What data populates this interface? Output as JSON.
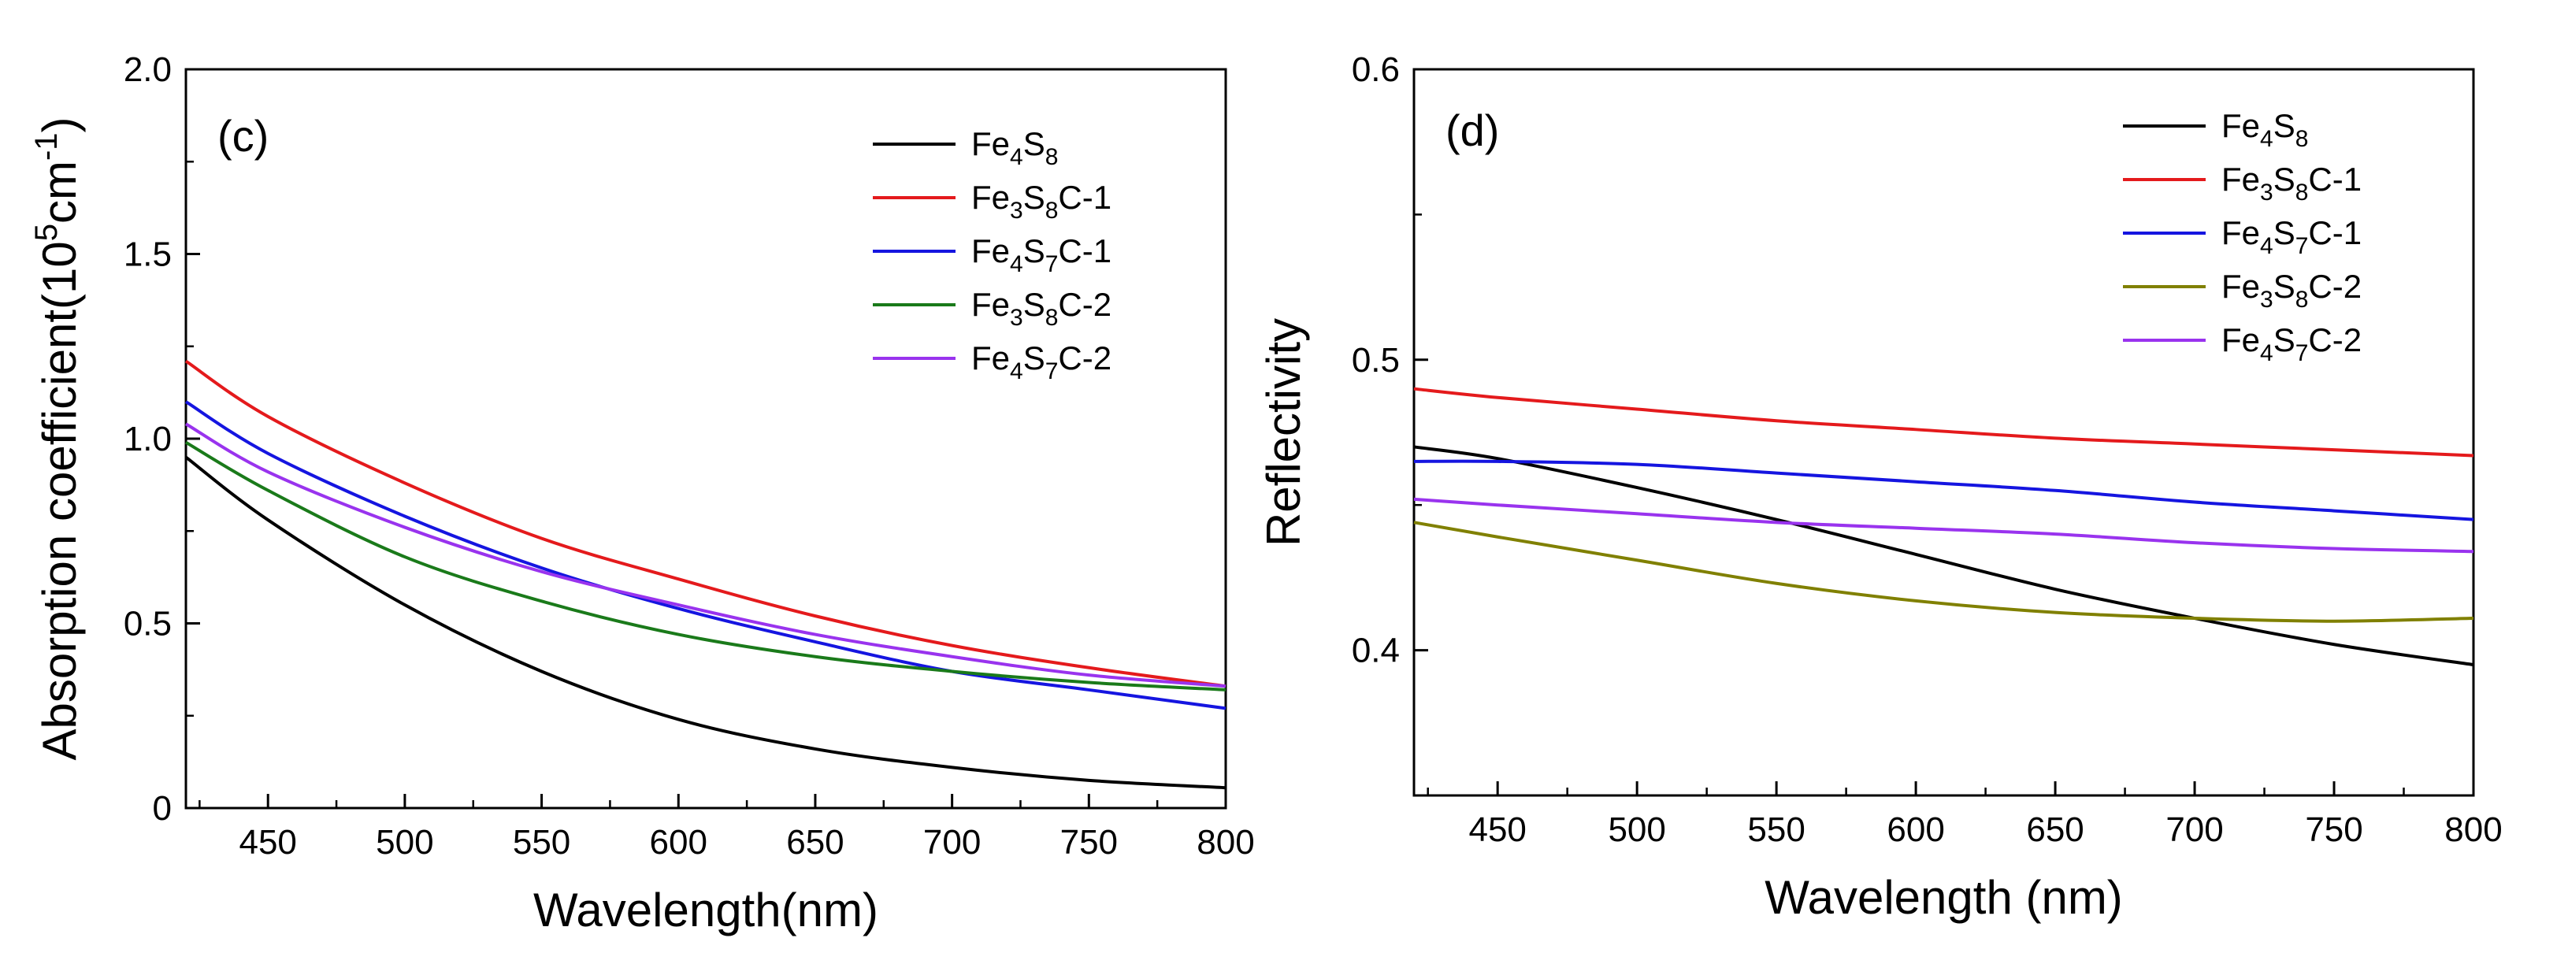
{
  "chart_data": [
    {
      "type": "line",
      "panel_label": "(c)",
      "xlabel": "Wavelength(nm)",
      "ylabel": "Absorption coefficient(10^5cm^-1)",
      "ylabel_parts": {
        "base": "Absorption coefficient(10",
        "sup1": "5",
        "mid": "cm",
        "sup2": "-1",
        "end": ")"
      },
      "xlim": [
        420,
        800
      ],
      "ylim": [
        0,
        2.0
      ],
      "xticks": [
        450,
        500,
        550,
        600,
        650,
        700,
        750,
        800
      ],
      "xtick_labels": [
        "450",
        "500",
        "550",
        "600",
        "650",
        "700",
        "750",
        "800"
      ],
      "yticks": [
        0,
        0.5,
        1.0,
        1.5,
        2.0
      ],
      "ytick_labels": [
        "0",
        "0.5",
        "1.0",
        "1.5",
        "2.0"
      ],
      "x": [
        420,
        450,
        500,
        550,
        600,
        650,
        700,
        750,
        800
      ],
      "series": [
        {
          "name": "Fe4S8",
          "label": {
            "a": "Fe",
            "s1": "4",
            "b": "S",
            "s2": "8",
            "c": ""
          },
          "color": "#000000",
          "values": [
            0.95,
            0.78,
            0.55,
            0.37,
            0.24,
            0.16,
            0.11,
            0.075,
            0.055
          ]
        },
        {
          "name": "Fe3S8C-1",
          "label": {
            "a": "Fe",
            "s1": "3",
            "b": "S",
            "s2": "8",
            "c": "C-1"
          },
          "color": "#e41a1c",
          "values": [
            1.21,
            1.06,
            0.88,
            0.73,
            0.62,
            0.52,
            0.44,
            0.38,
            0.33
          ]
        },
        {
          "name": "Fe4S7C-1",
          "label": {
            "a": "Fe",
            "s1": "4",
            "b": "S",
            "s2": "7",
            "c": "C-1"
          },
          "color": "#1515e0",
          "values": [
            1.1,
            0.96,
            0.79,
            0.65,
            0.54,
            0.45,
            0.37,
            0.32,
            0.27
          ]
        },
        {
          "name": "Fe3S8C-2",
          "label": {
            "a": "Fe",
            "s1": "3",
            "b": "S",
            "s2": "8",
            "c": "C-2"
          },
          "color": "#1a7a1a",
          "values": [
            0.99,
            0.86,
            0.68,
            0.56,
            0.47,
            0.41,
            0.37,
            0.34,
            0.32
          ]
        },
        {
          "name": "Fe4S7C-2",
          "label": {
            "a": "Fe",
            "s1": "4",
            "b": "S",
            "s2": "7",
            "c": "C-2"
          },
          "color": "#9933ee",
          "values": [
            1.04,
            0.91,
            0.76,
            0.64,
            0.55,
            0.47,
            0.41,
            0.36,
            0.33
          ]
        }
      ]
    },
    {
      "type": "line",
      "panel_label": "(d)",
      "xlabel": "Wavelength (nm)",
      "ylabel": "Reflectivity",
      "xlim": [
        420,
        800
      ],
      "ylim": [
        0.35,
        0.6
      ],
      "xticks": [
        450,
        500,
        550,
        600,
        650,
        700,
        750,
        800
      ],
      "xtick_labels": [
        "450",
        "500",
        "550",
        "600",
        "650",
        "700",
        "750",
        "800"
      ],
      "yticks": [
        0.4,
        0.5,
        0.6
      ],
      "ytick_labels": [
        "0.4",
        "0.5",
        "0.6"
      ],
      "x": [
        420,
        450,
        500,
        550,
        600,
        650,
        700,
        750,
        800
      ],
      "series": [
        {
          "name": "Fe4S8",
          "label": {
            "a": "Fe",
            "s1": "4",
            "b": "S",
            "s2": "8",
            "c": ""
          },
          "color": "#000000",
          "values": [
            0.47,
            0.466,
            0.456,
            0.445,
            0.433,
            0.421,
            0.411,
            0.402,
            0.395
          ]
        },
        {
          "name": "Fe3S8C-1",
          "label": {
            "a": "Fe",
            "s1": "3",
            "b": "S",
            "s2": "8",
            "c": "C-1"
          },
          "color": "#e41a1c",
          "values": [
            0.49,
            0.487,
            0.483,
            0.479,
            0.476,
            0.473,
            0.471,
            0.469,
            0.467
          ]
        },
        {
          "name": "Fe4S7C-1",
          "label": {
            "a": "Fe",
            "s1": "4",
            "b": "S",
            "s2": "7",
            "c": "C-1"
          },
          "color": "#1515e0",
          "values": [
            0.465,
            0.465,
            0.464,
            0.461,
            0.458,
            0.455,
            0.451,
            0.448,
            0.445
          ]
        },
        {
          "name": "Fe3S8C-2",
          "label": {
            "a": "Fe",
            "s1": "3",
            "b": "S",
            "s2": "8",
            "c": "C-2"
          },
          "color": "#808000",
          "values": [
            0.444,
            0.439,
            0.431,
            0.423,
            0.417,
            0.413,
            0.411,
            0.41,
            0.411
          ]
        },
        {
          "name": "Fe4S7C-2",
          "label": {
            "a": "Fe",
            "s1": "4",
            "b": "S",
            "s2": "7",
            "c": "C-2"
          },
          "color": "#9933ee",
          "values": [
            0.452,
            0.45,
            0.447,
            0.444,
            0.442,
            0.44,
            0.437,
            0.435,
            0.434
          ]
        }
      ]
    }
  ]
}
